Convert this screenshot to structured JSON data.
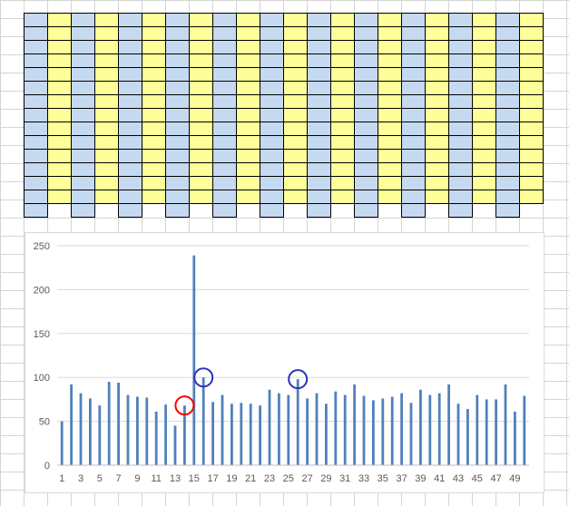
{
  "grid": {
    "columns": 22,
    "rows": 15,
    "column_colors": [
      "#c5d9f1",
      "#ffff99"
    ],
    "notches_in_last_row": "blue columns"
  },
  "chart_data": {
    "type": "bar",
    "categories": [
      1,
      2,
      3,
      4,
      5,
      6,
      7,
      8,
      9,
      10,
      11,
      12,
      13,
      14,
      15,
      16,
      17,
      18,
      19,
      20,
      21,
      22,
      23,
      24,
      25,
      26,
      27,
      28,
      29,
      30,
      31,
      32,
      33,
      34,
      35,
      36,
      37,
      38,
      39,
      40,
      41,
      42,
      43,
      44,
      45,
      46,
      47,
      48,
      49,
      50
    ],
    "x_tick_labels": [
      "1",
      "3",
      "5",
      "7",
      "9",
      "11",
      "13",
      "15",
      "17",
      "19",
      "21",
      "23",
      "25",
      "27",
      "29",
      "31",
      "33",
      "35",
      "37",
      "39",
      "41",
      "43",
      "45",
      "47",
      "49"
    ],
    "values": [
      50,
      92,
      82,
      76,
      68,
      95,
      94,
      80,
      78,
      77,
      61,
      69,
      45,
      68,
      239,
      100,
      72,
      80,
      70,
      71,
      70,
      68,
      86,
      82,
      80,
      98,
      76,
      82,
      70,
      84,
      80,
      92,
      79,
      74,
      76,
      78,
      82,
      71,
      86,
      80,
      82,
      92,
      70,
      64,
      80,
      75,
      75,
      92,
      61,
      79
    ],
    "ylim": [
      0,
      250
    ],
    "y_ticks": [
      "0",
      "50",
      "100",
      "150",
      "200",
      "250"
    ],
    "grid": true,
    "bar_color": "#4f81bd",
    "annotations": [
      {
        "shape": "circle",
        "color": "#ff0000",
        "category": 14
      },
      {
        "shape": "circle",
        "color": "#2f2fbf",
        "category": 16
      },
      {
        "shape": "circle",
        "color": "#2f2fbf",
        "category": 26
      }
    ]
  }
}
